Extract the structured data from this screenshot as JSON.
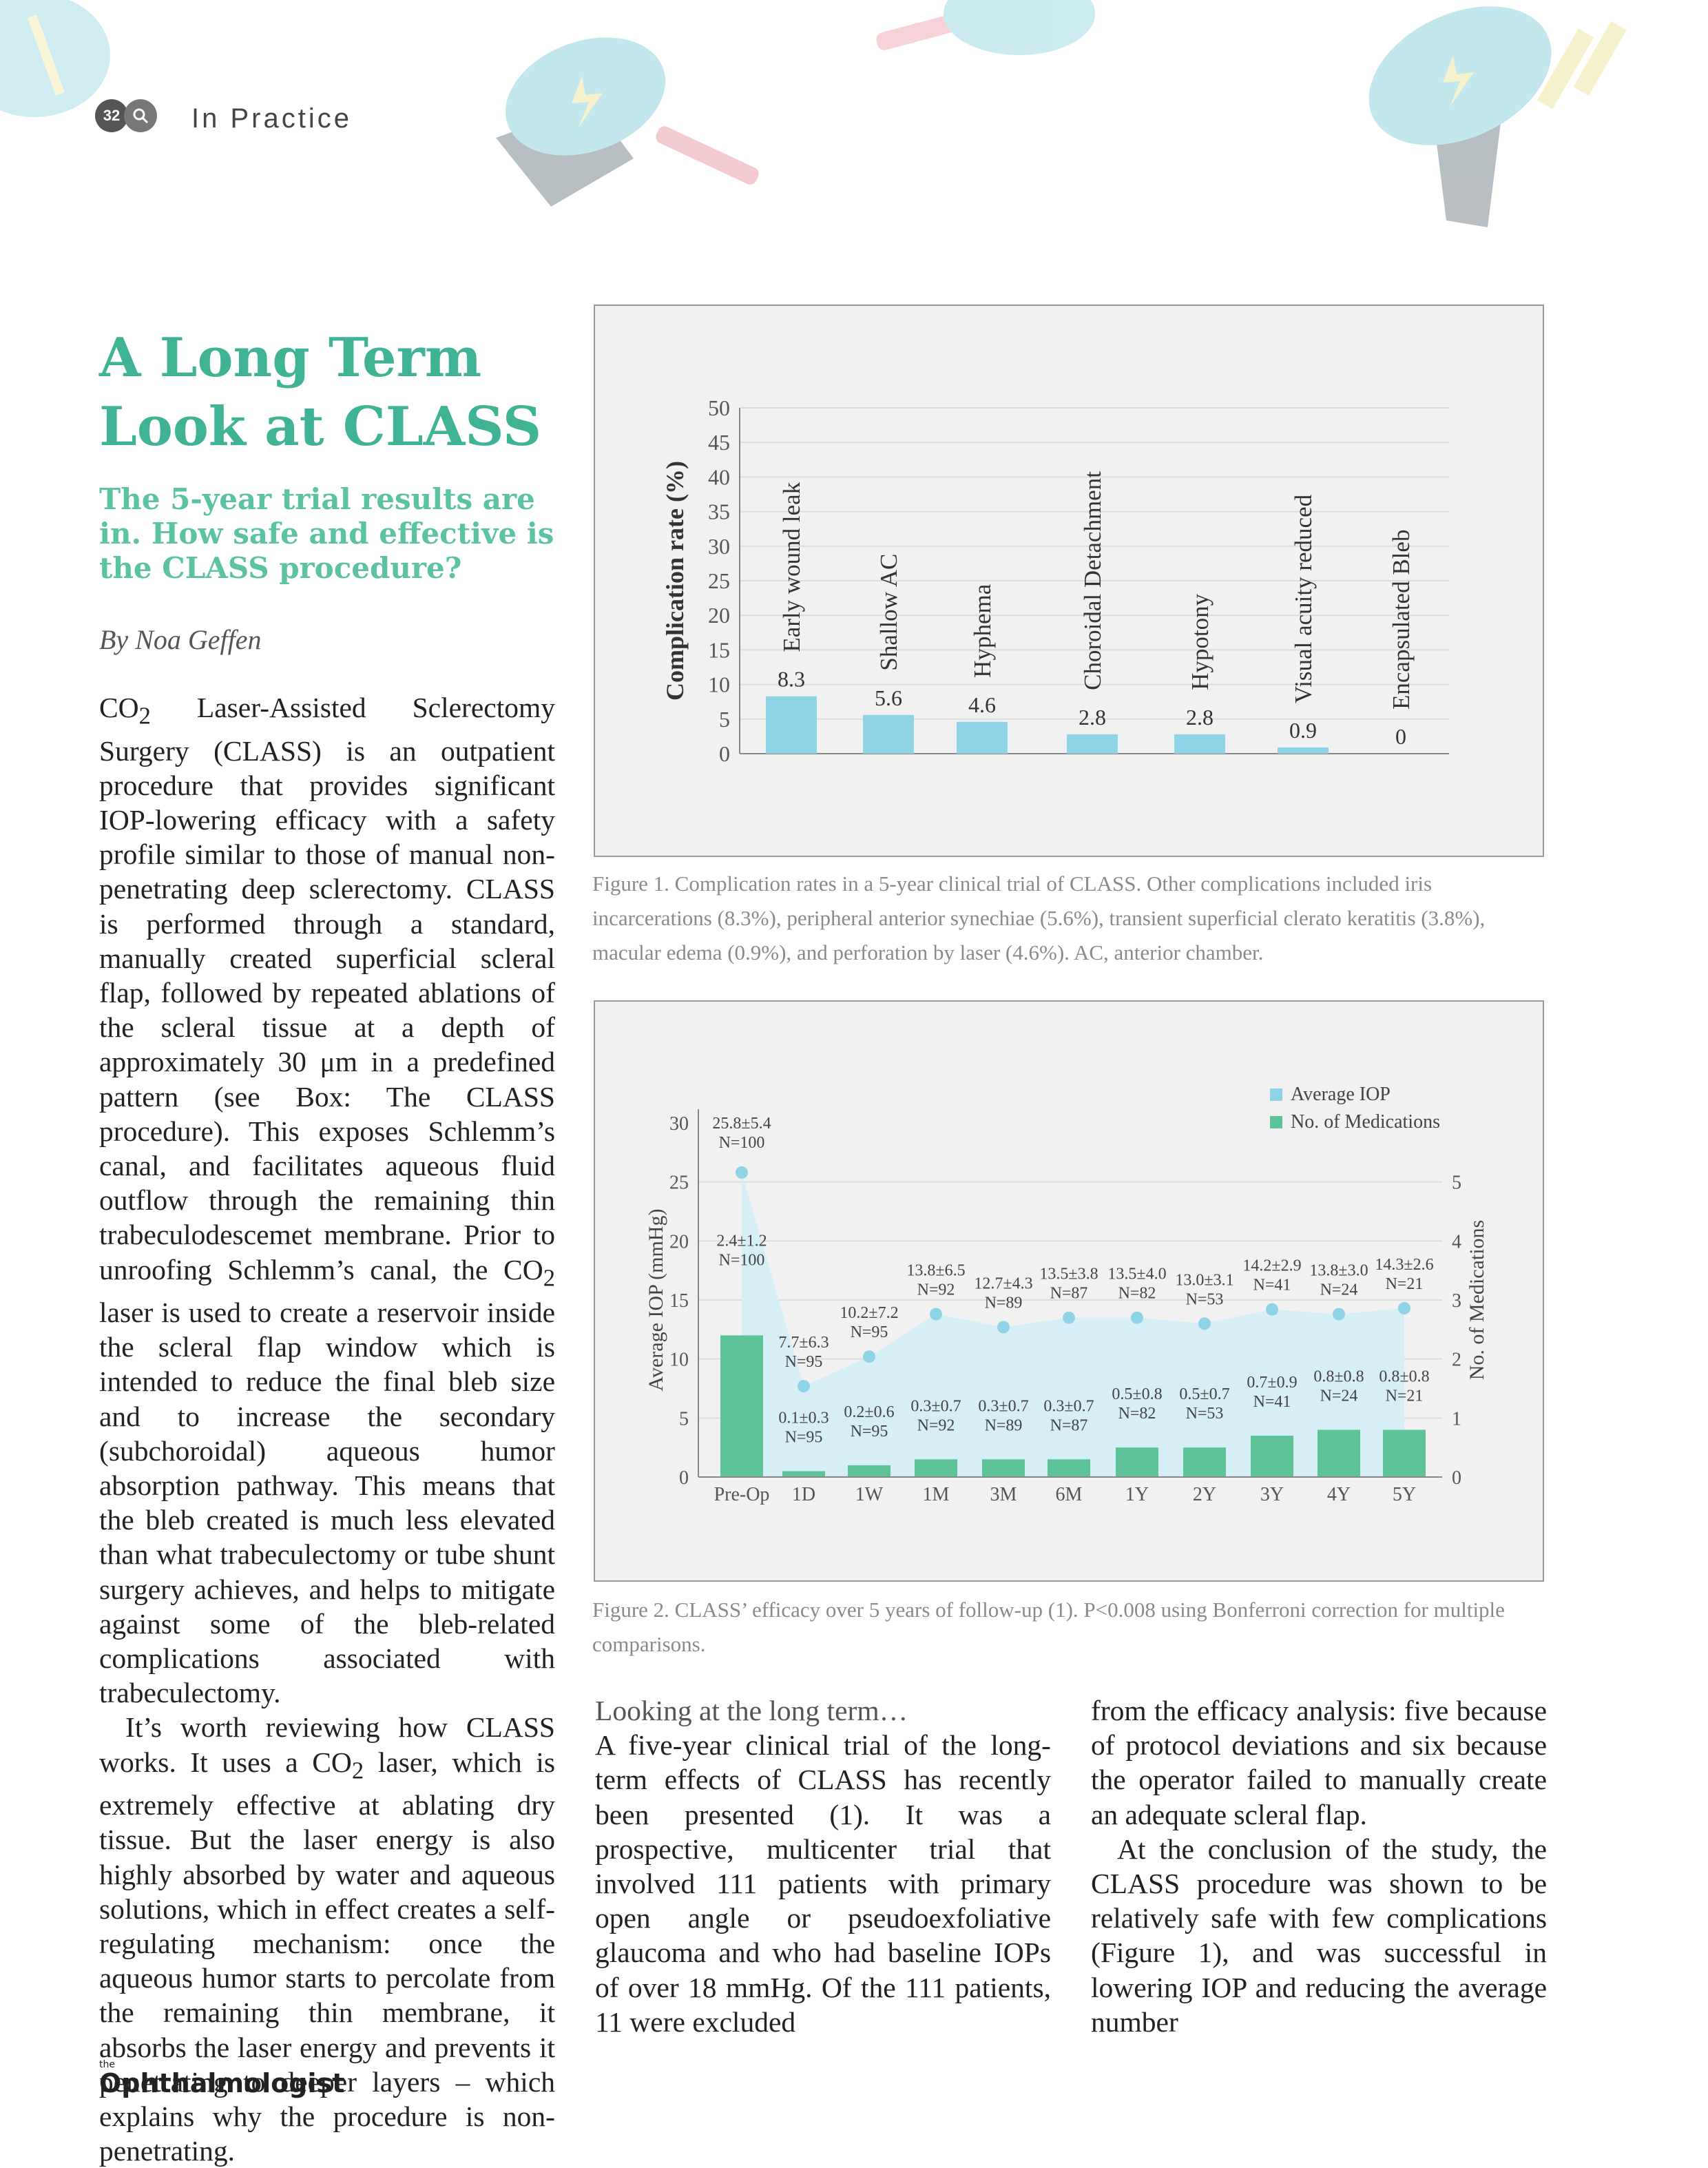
{
  "header": {
    "page_number": "32",
    "section": "In Practice",
    "icon": "magnifier-icon"
  },
  "article": {
    "title_line1": "A Long Term",
    "title_line2": "Look at CLASS",
    "subtitle": "The 5-year trial results are in. How safe and effective is the CLASS procedure?",
    "byline": "By Noa Geffen",
    "p1_a": "CO",
    "p1_sub": "2",
    "p1_b": " Laser-Assisted Sclerectomy Surgery (CLASS) is an outpatient procedure that provides significant IOP-lowering efficacy with a safety profile similar to those of manual non-penetrating deep sclerectomy. CLASS is performed through a standard, manually created superficial scleral flap, followed by repeated ablations of the scleral tissue at a depth of approximately 30 μm in a predefined pattern (see Box: The CLASS procedure). This exposes Schlemm’s canal, and facilitates aqueous fluid outflow through the remaining thin trabeculodescemet membrane. Prior to unroofing Schlemm’s canal, the ",
    "p1_c": "CO",
    "p1_sub2": "2",
    "p1_d": " laser is used to create a reservoir inside the scleral flap window which is intended to reduce the final bleb size and to increase the secondary (subchoroidal) aqueous humor absorption pathway. This means that the bleb created is much less elevated than what trabeculectomy or tube shunt surgery achieves, and helps to mitigate against some of the bleb-related complications associated with trabeculectomy.",
    "p2_a": "It’s worth reviewing how CLASS works. It uses a CO",
    "p2_sub": "2",
    "p2_b": " laser, which is extremely effective at ablating dry tissue. But the laser energy is also highly absorbed by water and aqueous solutions, which in effect creates a self-regulating mechanism: once the aqueous humor starts to percolate from the remaining thin membrane, it absorbs the laser energy and prevents it penetrating to deeper layers – which explains why the procedure is non-penetrating.",
    "section_head": "Looking at the long term…",
    "p3": "A five-year clinical trial of the long-term effects of CLASS has recently been presented (1). It was a prospective, multicenter trial that involved 111 patients with primary open angle or pseudoexfoliative glaucoma and who had baseline IOPs of over 18 mmHg. Of the 111 patients, 11 were excluded",
    "p4": "from the efficacy analysis: five because of protocol deviations and six because the operator failed to manually create an adequate scleral flap.",
    "p5": "At the conclusion of the study, the CLASS procedure was shown to be relatively safe with few complications (Figure 1), and was successful in lowering IOP and reducing the average number"
  },
  "figure1": {
    "caption": "Figure 1. Complication rates in a 5-year clinical trial of CLASS. Other complications included iris incarcerations (8.3%), peripheral anterior synechiae (5.6%), transient superficial clerato keratitis (3.8%), macular edema (0.9%), and perforation by laser (4.6%). AC, anterior chamber."
  },
  "figure2": {
    "caption": "Figure 2. CLASS’ efficacy over 5 years of follow-up (1). P<0.008 using Bonferroni correction for multiple comparisons."
  },
  "footer": {
    "the": "the",
    "logo": "Ophthalmologist"
  },
  "colors": {
    "accent_green": "#3fb394",
    "bar_blue": "#8fd3e6",
    "bar_green": "#5fc39a",
    "area_blue": "#d4edf6"
  },
  "chart_data": [
    {
      "type": "bar",
      "ylabel": "Complication rate (%)",
      "ylim": [
        0,
        50
      ],
      "yticks": [
        0,
        5,
        10,
        15,
        20,
        25,
        30,
        35,
        40,
        45,
        50
      ],
      "grid": true,
      "categories": [
        "Early wound leak",
        "Shallow AC",
        "Hyphema",
        "Choroidal Detachment",
        "Hypotony",
        "Visual acuity reduced",
        "Encapsulated Bleb"
      ],
      "values": [
        8.3,
        5.6,
        4.6,
        2.8,
        2.8,
        0.9,
        0
      ],
      "data_labels": [
        "8.3",
        "5.6",
        "4.6",
        "2.8",
        "2.8",
        "0.9",
        "0"
      ]
    },
    {
      "type": "bar",
      "categories": [
        "Pre-Op",
        "1D",
        "1W",
        "1M",
        "3M",
        "6M",
        "1Y",
        "2Y",
        "3Y",
        "4Y",
        "5Y"
      ],
      "ylabel": "Average IOP (mmHg)",
      "ylabel_right": "No. of Medications",
      "ylim": [
        0,
        30
      ],
      "ylim_right": [
        0,
        6
      ],
      "yticks": [
        0,
        5,
        10,
        15,
        20,
        25,
        30
      ],
      "yticks_right": [
        0,
        1,
        2,
        3,
        4,
        5
      ],
      "legend_position": "top-right",
      "series": [
        {
          "name": "Average IOP",
          "type": "area",
          "values": [
            25.8,
            7.7,
            10.2,
            13.8,
            12.7,
            13.5,
            13.5,
            13.0,
            14.2,
            13.8,
            14.3
          ],
          "labels": [
            "25.8±5.4",
            "7.7±6.3",
            "10.2±7.2",
            "13.8±6.5",
            "12.7±4.3",
            "13.5±3.8",
            "13.5±4.0",
            "13.0±3.1",
            "14.2±2.9",
            "13.8±3.0",
            "14.3±2.6"
          ],
          "n": [
            "N=100",
            "N=95",
            "N=95",
            "N=92",
            "N=89",
            "N=87",
            "N=82",
            "N=53",
            "N=41",
            "N=24",
            "N=21"
          ]
        },
        {
          "name": "No. of Medications",
          "type": "bar",
          "axis": "right",
          "values": [
            2.4,
            0.1,
            0.2,
            0.3,
            0.3,
            0.3,
            0.5,
            0.5,
            0.7,
            0.8,
            0.8
          ],
          "labels": [
            "2.4±1.2",
            "0.1±0.3",
            "0.2±0.6",
            "0.3±0.7",
            "0.3±0.7",
            "0.3±0.7",
            "0.5±0.8",
            "0.5±0.7",
            "0.7±0.9",
            "0.8±0.8",
            "0.8±0.8"
          ],
          "n": [
            "N=100",
            "N=95",
            "N=95",
            "N=92",
            "N=89",
            "N=87",
            "N=82",
            "N=53",
            "N=41",
            "N=24",
            "N=21"
          ]
        }
      ]
    }
  ]
}
